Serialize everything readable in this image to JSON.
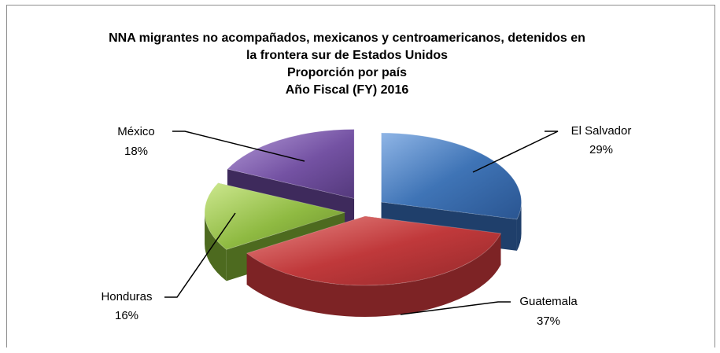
{
  "chart_data": {
    "type": "pie",
    "title_lines": [
      "NNA migrantes no acompañados, mexicanos y centroamericanos, detenidos en",
      "la frontera sur de Estados Unidos",
      "Proporción por país",
      "Año Fiscal (FY) 2016"
    ],
    "slices": [
      {
        "label": "El Salvador",
        "value": 29,
        "value_label": "29%",
        "color": "#3f74b6",
        "exploded": true
      },
      {
        "label": "Guatemala",
        "value": 37,
        "value_label": "37%",
        "color": "#c0393b",
        "exploded": false
      },
      {
        "label": "Honduras",
        "value": 16,
        "value_label": "16%",
        "color": "#8fba42",
        "exploded": true
      },
      {
        "label": "México",
        "value": 18,
        "value_label": "18%",
        "color": "#7452a3",
        "exploded": true
      }
    ],
    "style": "3d-exploded",
    "legend": "none"
  }
}
